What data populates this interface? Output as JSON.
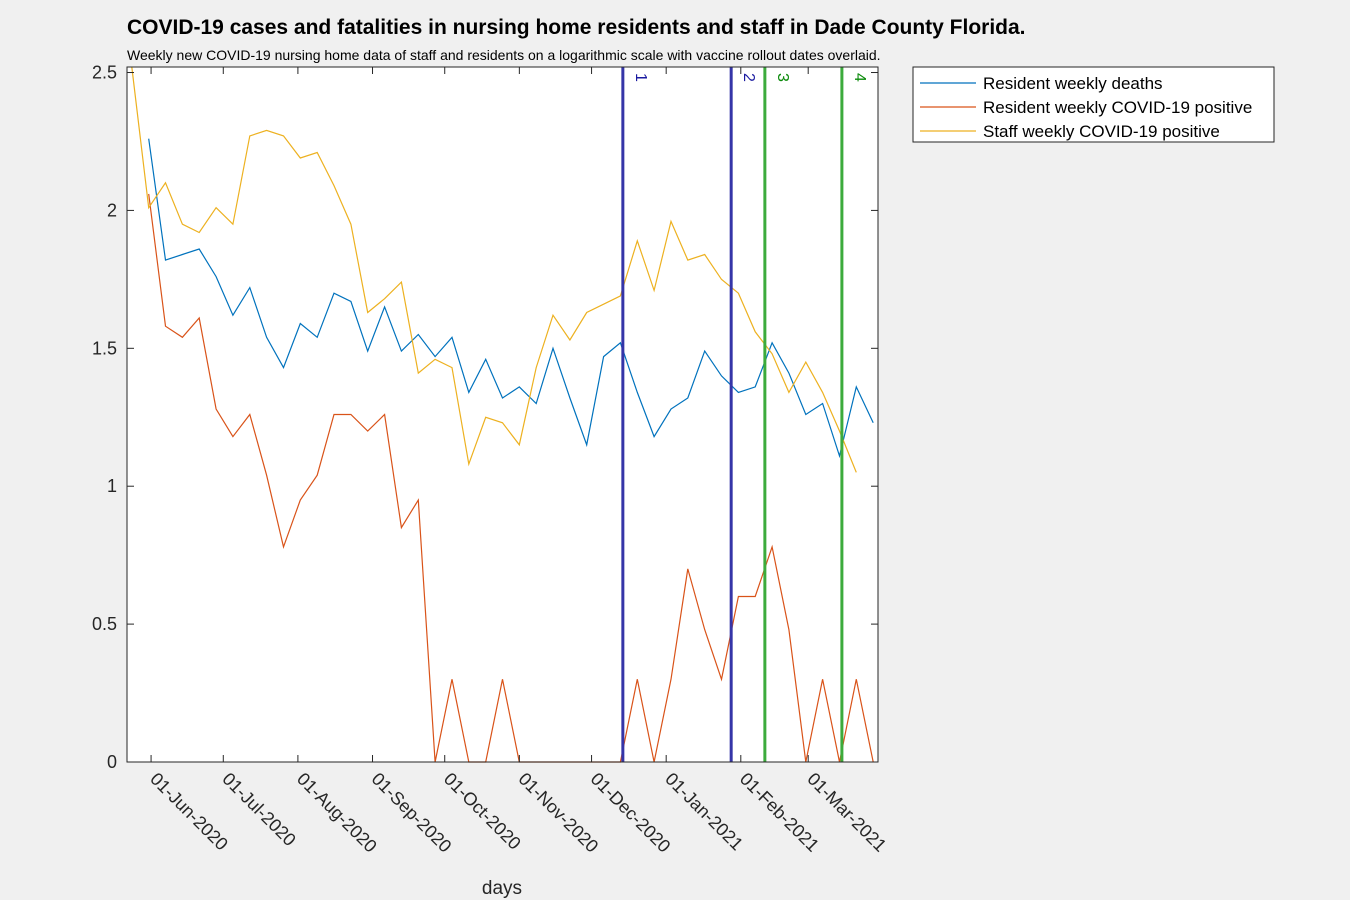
{
  "chart_data": {
    "type": "line",
    "title": "COVID-19 cases and fatalities in nursing home residents and staff in Dade County Florida.",
    "subtitle": "Weekly new COVID-19 nursing home data of staff and residents on a logarithmic scale with vaccine rollout dates overlaid.",
    "xlabel": "days",
    "ylabel": "",
    "x_tick_labels": [
      "01-Jun-2020",
      "01-Jul-2020",
      "01-Aug-2020",
      "01-Sep-2020",
      "01-Oct-2020",
      "01-Nov-2020",
      "01-Dec-2020",
      "01-Jan-2021",
      "01-Feb-2021",
      "01-Mar-2021"
    ],
    "x_tick_dates": [
      "2020-06-01",
      "2020-07-01",
      "2020-08-01",
      "2020-09-01",
      "2020-10-01",
      "2020-11-01",
      "2020-12-01",
      "2021-01-01",
      "2021-02-01",
      "2021-03-01"
    ],
    "y_tick_labels": [
      "0",
      "0.5",
      "1",
      "1.5",
      "2",
      "2.5"
    ],
    "y_ticks": [
      0,
      0.5,
      1,
      1.5,
      2,
      2.5
    ],
    "xlim": [
      "2020-05-22",
      "2021-03-30"
    ],
    "ylim": [
      0,
      2.52
    ],
    "grid": false,
    "legend_position": "outside top-right",
    "x_dates": [
      "2020-05-24",
      "2020-05-31",
      "2020-06-07",
      "2020-06-14",
      "2020-06-21",
      "2020-06-28",
      "2020-07-05",
      "2020-07-12",
      "2020-07-19",
      "2020-07-26",
      "2020-08-02",
      "2020-08-09",
      "2020-08-16",
      "2020-08-23",
      "2020-08-30",
      "2020-09-06",
      "2020-09-13",
      "2020-09-20",
      "2020-09-27",
      "2020-10-04",
      "2020-10-11",
      "2020-10-18",
      "2020-10-25",
      "2020-11-01",
      "2020-11-08",
      "2020-11-15",
      "2020-11-22",
      "2020-11-29",
      "2020-12-06",
      "2020-12-13",
      "2020-12-20",
      "2020-12-27",
      "2021-01-03",
      "2021-01-10",
      "2021-01-17",
      "2021-01-24",
      "2021-01-31",
      "2021-02-07",
      "2021-02-14",
      "2021-02-21",
      "2021-02-28",
      "2021-03-07",
      "2021-03-14",
      "2021-03-21",
      "2021-03-28"
    ],
    "series": [
      {
        "name": "Resident weekly deaths",
        "color": "#0072BD",
        "start_index": 1,
        "values": [
          2.26,
          1.82,
          1.84,
          1.86,
          1.76,
          1.62,
          1.72,
          1.54,
          1.43,
          1.59,
          1.54,
          1.7,
          1.67,
          1.49,
          1.65,
          1.49,
          1.55,
          1.47,
          1.54,
          1.34,
          1.46,
          1.32,
          1.36,
          1.3,
          1.5,
          1.32,
          1.15,
          1.47,
          1.52,
          1.34,
          1.18,
          1.28,
          1.32,
          1.49,
          1.4,
          1.34,
          1.36,
          1.52,
          1.41,
          1.26,
          1.3,
          1.11,
          1.36,
          1.23
        ]
      },
      {
        "name": "Resident weekly COVID-19 positive",
        "color": "#D95319",
        "start_index": 1,
        "values": [
          2.06,
          1.58,
          1.54,
          1.61,
          1.28,
          1.18,
          1.26,
          1.04,
          0.78,
          0.95,
          1.04,
          1.26,
          1.26,
          1.2,
          1.26,
          0.85,
          0.95,
          0,
          0.3,
          0,
          0,
          0.3,
          0,
          0,
          0,
          0,
          0,
          0,
          0,
          0.3,
          0,
          0.3,
          0.7,
          0.48,
          0.3,
          0.6,
          0.6,
          0.78,
          0.48,
          0,
          0.3,
          0,
          0.3,
          0
        ]
      },
      {
        "name": "Staff weekly COVID-19 positive",
        "color": "#EDB120",
        "start_index": 0,
        "values": [
          2.52,
          2.01,
          2.1,
          1.95,
          1.92,
          2.01,
          1.95,
          2.27,
          2.29,
          2.27,
          2.19,
          2.21,
          2.09,
          1.95,
          1.63,
          1.68,
          1.74,
          1.41,
          1.46,
          1.43,
          1.08,
          1.25,
          1.23,
          1.15,
          1.43,
          1.62,
          1.53,
          1.63,
          1.66,
          1.69,
          1.89,
          1.71,
          1.96,
          1.82,
          1.84,
          1.75,
          1.7,
          1.56,
          1.48,
          1.34,
          1.45,
          1.34,
          1.2,
          1.05
        ]
      }
    ],
    "vaccine_rollout_lines": [
      {
        "label": "1",
        "date": "2020-12-14",
        "color": "#3535a8",
        "text_color": "#1a1aa0"
      },
      {
        "label": "2",
        "date": "2021-01-28",
        "color": "#3535a8",
        "text_color": "#1a1aa0"
      },
      {
        "label": "3",
        "date": "2021-02-11",
        "color": "#3cab3c",
        "text_color": "#0a8a0a"
      },
      {
        "label": "4",
        "date": "2021-03-15",
        "color": "#3cab3c",
        "text_color": "#0a8a0a"
      }
    ]
  },
  "colors": {
    "figure_background": "#f0f0f0",
    "axes_background": "#ffffff",
    "axes_color": "#262626"
  }
}
